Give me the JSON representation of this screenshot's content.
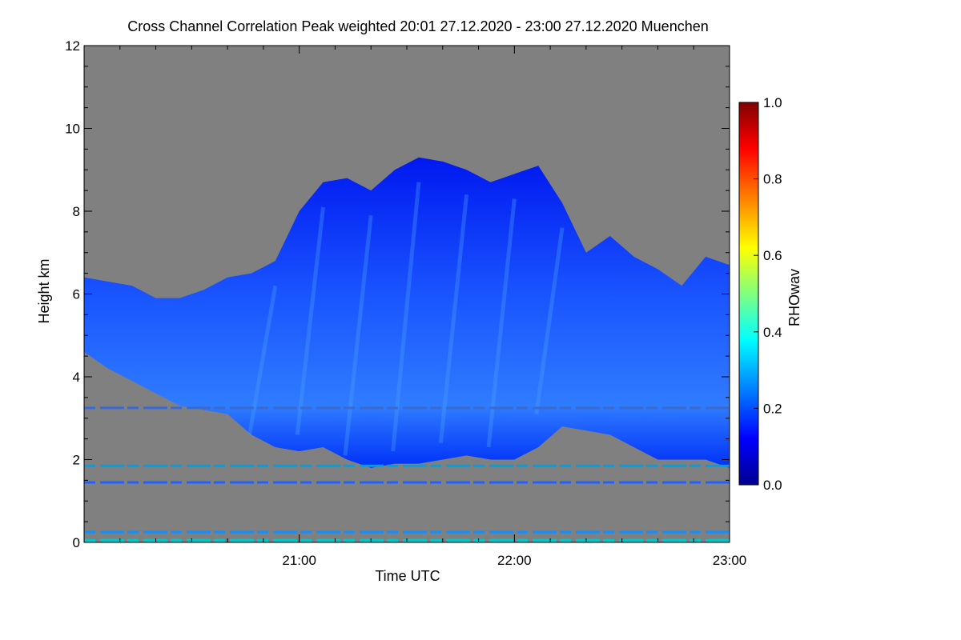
{
  "chart_data": {
    "type": "heatmap",
    "title": "Cross Channel Correlation Peak weighted   20:01 27.12.2020 - 23:00 27.12.2020 Muenchen",
    "xlabel": "Time UTC",
    "ylabel": "Height km",
    "colorbar_label": "RHOwav",
    "x_tick_labels": [
      "21:00",
      "22:00",
      "23:00"
    ],
    "x_tick_hours": [
      1.0,
      2.0,
      3.0
    ],
    "x_range_hours": [
      0.0,
      3.0
    ],
    "y_ticks": [
      0,
      2,
      4,
      6,
      8,
      10,
      12
    ],
    "ylim": [
      0,
      12
    ],
    "colorbar_ticks": [
      "0.0",
      "0.2",
      "0.4",
      "0.6",
      "0.8",
      "1.0"
    ],
    "colorbar_range": [
      0.0,
      1.0
    ],
    "background_color": "#808080",
    "colormap": [
      "#00008f",
      "#0000ff",
      "#0080ff",
      "#00ffff",
      "#80ff80",
      "#ffff00",
      "#ff8000",
      "#ff0000",
      "#800000"
    ],
    "cloud_top_km": [
      6.4,
      6.3,
      6.2,
      5.9,
      5.9,
      6.1,
      6.4,
      6.5,
      6.8,
      8.0,
      8.7,
      8.8,
      8.5,
      9.0,
      9.3,
      9.2,
      9.0,
      8.7,
      8.9,
      9.1,
      8.2,
      7.0,
      7.4,
      6.9,
      6.6,
      6.2,
      6.9,
      6.7
    ],
    "cloud_base_km": [
      4.6,
      4.2,
      3.9,
      3.6,
      3.3,
      3.2,
      3.1,
      2.6,
      2.3,
      2.2,
      2.3,
      2.0,
      1.8,
      1.9,
      1.9,
      2.0,
      2.1,
      2.0,
      2.0,
      2.3,
      2.8,
      2.7,
      2.6,
      2.3,
      2.0,
      2.0,
      2.0,
      1.8
    ]
  }
}
